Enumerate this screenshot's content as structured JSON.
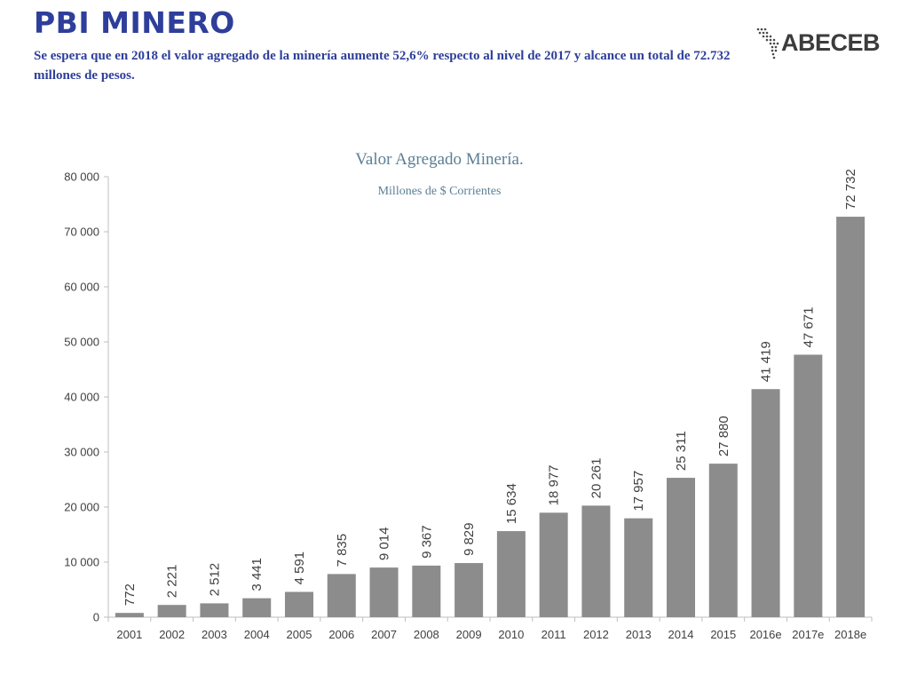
{
  "header": {
    "title": "PBI MINERO",
    "subtitle": "Se espera que en 2018 el valor agregado de la minería aumente 52,6% respecto al nivel de 2017 y alcance  un total de 72.732 millones de pesos."
  },
  "logo": {
    "text": "ABECEB",
    "icon": "americas-map-icon",
    "color": "#3c3c3c"
  },
  "colors": {
    "title": "#2e3e9a",
    "bars": "#8c8c8c",
    "chart_title": "#5b7f94"
  },
  "chart_data": {
    "type": "bar",
    "title": "Valor Agregado Minería.",
    "subtitle": "Millones de $ Corrientes",
    "categories": [
      "2001",
      "2002",
      "2003",
      "2004",
      "2005",
      "2006",
      "2007",
      "2008",
      "2009",
      "2010",
      "2011",
      "2012",
      "2013",
      "2014",
      "2015",
      "2016e",
      "2017e",
      "2018e"
    ],
    "values": [
      772,
      2221,
      2512,
      3441,
      4591,
      7835,
      9014,
      9367,
      9829,
      15634,
      18977,
      20261,
      17957,
      25311,
      27880,
      41419,
      47671,
      72732
    ],
    "data_labels": [
      "772",
      "2 221",
      "2 512",
      "3 441",
      "4 591",
      "7 835",
      "9 014",
      "9 367",
      "9 829",
      "15 634",
      "18 977",
      "20 261",
      "17 957",
      "25 311",
      "27 880",
      "41 419",
      "47 671",
      "72 732"
    ],
    "ylim": [
      0,
      80000
    ],
    "yticks": [
      0,
      10000,
      20000,
      30000,
      40000,
      50000,
      60000,
      70000,
      80000
    ],
    "ytick_labels": [
      "0",
      "10 000",
      "20 000",
      "30 000",
      "40 000",
      "50 000",
      "60 000",
      "70 000",
      "80 000"
    ],
    "grid": false,
    "legend": false,
    "xlabel": "",
    "ylabel": ""
  }
}
